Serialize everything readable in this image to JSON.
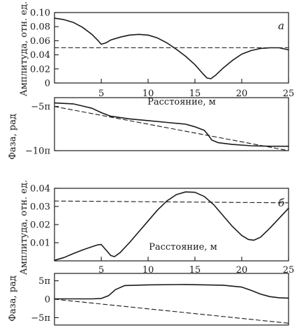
{
  "chart_data": [
    {
      "panel": "а",
      "plot": "amplitude",
      "type": "line",
      "ylabel": "Амплитуда, отн. ед.",
      "xlabel": "Расстояние, м",
      "xlim": [
        0,
        25
      ],
      "ylim": [
        0,
        0.1
      ],
      "x_ticks": [
        "5",
        "10",
        "15",
        "20",
        "25"
      ],
      "y_ticks": [
        "0",
        "0.02",
        "0.04",
        "0.06",
        "0.08",
        "0.10"
      ],
      "y_tick_values": [
        0,
        0.02,
        0.04,
        0.06,
        0.08,
        0.1
      ],
      "series": [
        {
          "style": "solid",
          "x": [
            0,
            1,
            2,
            3,
            4,
            4.6,
            5.0,
            5.5,
            6,
            7,
            8,
            9,
            10,
            11,
            12,
            13,
            14,
            15,
            15.8,
            16.3,
            16.7,
            17.2,
            18,
            19,
            20,
            21,
            22,
            23,
            24,
            25
          ],
          "y": [
            0.092,
            0.09,
            0.086,
            0.079,
            0.069,
            0.061,
            0.055,
            0.057,
            0.061,
            0.065,
            0.068,
            0.069,
            0.068,
            0.064,
            0.057,
            0.048,
            0.038,
            0.026,
            0.014,
            0.007,
            0.006,
            0.011,
            0.021,
            0.032,
            0.041,
            0.046,
            0.049,
            0.05,
            0.05,
            0.047
          ]
        },
        {
          "style": "dashed",
          "x": [
            0,
            25
          ],
          "y": [
            0.05,
            0.05
          ]
        }
      ]
    },
    {
      "panel": "а",
      "plot": "phase",
      "type": "line",
      "ylabel": "Фаза, рад",
      "xlim": [
        0,
        25
      ],
      "ylim": [
        -10,
        -4
      ],
      "y_ticks": [
        "−5π",
        "−10π"
      ],
      "y_tick_values": [
        -5,
        -10
      ],
      "series": [
        {
          "style": "solid",
          "x": [
            0,
            2,
            4,
            5,
            6,
            8,
            10,
            12,
            14,
            15,
            16,
            16.4,
            16.8,
            17.5,
            19,
            21,
            23,
            25
          ],
          "y": [
            -4.6,
            -4.7,
            -5.2,
            -5.7,
            -6.1,
            -6.4,
            -6.6,
            -6.8,
            -7.0,
            -7.3,
            -7.7,
            -8.2,
            -8.8,
            -9.1,
            -9.3,
            -9.45,
            -9.5,
            -9.5
          ]
        },
        {
          "style": "dashed",
          "x": [
            0,
            25
          ],
          "y": [
            -5.0,
            -10.0
          ]
        }
      ]
    },
    {
      "panel": "б",
      "plot": "amplitude",
      "type": "line",
      "ylabel": "Амплитуда, отн. ед.",
      "xlabel": "Расстояние, м",
      "xlim": [
        0,
        25
      ],
      "ylim": [
        0,
        0.04
      ],
      "x_ticks": [
        "5",
        "10",
        "15",
        "20",
        "25"
      ],
      "y_ticks": [
        "0.01",
        "0.02",
        "0.03",
        "0.04"
      ],
      "y_tick_values": [
        0.01,
        0.02,
        0.03,
        0.04
      ],
      "series": [
        {
          "style": "solid",
          "x": [
            0,
            1,
            2,
            3,
            4,
            4.6,
            5.0,
            5.5,
            6,
            6.4,
            7,
            8,
            9,
            10,
            11,
            12,
            13,
            14,
            15,
            16,
            17,
            18,
            19,
            20,
            20.7,
            21.3,
            22,
            23,
            24,
            25
          ],
          "y": [
            0.0003,
            0.0018,
            0.004,
            0.006,
            0.0078,
            0.0088,
            0.009,
            0.006,
            0.003,
            0.0023,
            0.0045,
            0.01,
            0.016,
            0.022,
            0.028,
            0.033,
            0.0365,
            0.038,
            0.0378,
            0.0355,
            0.031,
            0.025,
            0.019,
            0.014,
            0.0118,
            0.0114,
            0.013,
            0.018,
            0.0235,
            0.029
          ]
        },
        {
          "style": "dashed",
          "x": [
            0,
            25
          ],
          "y": [
            0.033,
            0.032
          ]
        }
      ]
    },
    {
      "panel": "б",
      "plot": "phase",
      "type": "line",
      "ylabel": "Фаза, рад",
      "xlim": [
        0,
        25
      ],
      "ylim": [
        -7,
        7
      ],
      "y_ticks": [
        "5π",
        "0",
        "−5π"
      ],
      "y_tick_values": [
        5,
        0,
        -5
      ],
      "series": [
        {
          "style": "solid",
          "x": [
            0,
            2,
            4,
            5,
            5.8,
            6.5,
            7.5,
            10,
            14,
            18,
            20,
            21,
            22,
            23,
            24,
            25
          ],
          "y": [
            0.1,
            0.1,
            0.1,
            0.2,
            1.0,
            2.6,
            3.7,
            3.9,
            4.0,
            3.8,
            3.3,
            2.4,
            1.4,
            0.7,
            0.4,
            0.3
          ]
        },
        {
          "style": "dashed",
          "x": [
            0,
            25
          ],
          "y": [
            0.0,
            -6.5
          ]
        }
      ]
    }
  ]
}
